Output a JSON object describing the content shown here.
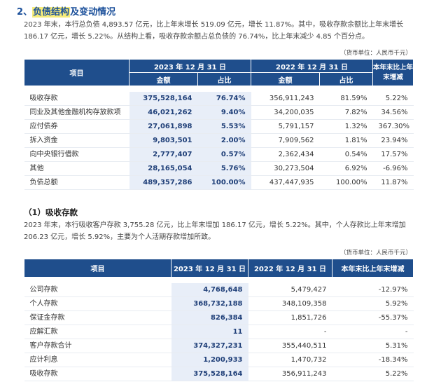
{
  "section": {
    "number": "2、",
    "title_highlight": "负债结构",
    "title_rest": "及变动情况",
    "para_lines": [
      "2023 年末，本行总负债 4,893.57 亿元，比上年末增长 519.09 亿元，增长 11.87%。其中，吸收存款余额比上年末增长",
      "186.17 亿元，增长 5.22%。从结构上看，吸收存款余额占总负债的 76.74%，比上年末减少 4.85 个百分点。"
    ],
    "unit": "（货币单位：人民币千元）"
  },
  "table1": {
    "headers": {
      "item": "项目",
      "date2023": "2023 年 12 月 31 日",
      "date2022": "2022 年 12 月 31 日",
      "change": "本年末比上年末增减",
      "amount": "金额",
      "ratio": "占比"
    },
    "rows": [
      {
        "item": "吸收存款",
        "a2023": "375,528,164",
        "r2023": "76.74%",
        "a2022": "356,911,243",
        "r2022": "81.59%",
        "chg": "5.22%"
      },
      {
        "item": "同业及其他金融机构存放款项",
        "a2023": "46,021,262",
        "r2023": "9.40%",
        "a2022": "34,200,035",
        "r2022": "7.82%",
        "chg": "34.56%"
      },
      {
        "item": "应付债券",
        "a2023": "27,061,898",
        "r2023": "5.53%",
        "a2022": "5,791,157",
        "r2022": "1.32%",
        "chg": "367.30%"
      },
      {
        "item": "拆入资金",
        "a2023": "9,803,501",
        "r2023": "2.00%",
        "a2022": "7,909,562",
        "r2022": "1.81%",
        "chg": "23.94%"
      },
      {
        "item": "向中央银行借款",
        "a2023": "2,777,407",
        "r2023": "0.57%",
        "a2022": "2,362,434",
        "r2022": "0.54%",
        "chg": "17.57%"
      },
      {
        "item": "其他",
        "a2023": "28,165,054",
        "r2023": "5.76%",
        "a2022": "30,273,504",
        "r2022": "6.92%",
        "chg": "-6.96%"
      },
      {
        "item": "负债总额",
        "a2023": "489,357,286",
        "r2023": "100.00%",
        "a2022": "437,447,935",
        "r2022": "100.00%",
        "chg": "11.87%"
      }
    ]
  },
  "subsection": {
    "title": "（1）吸收存款",
    "para_lines": [
      "2023 年末，本行吸收客户存款 3,755.28 亿元，比上年末增加 186.17 亿元，增长 5.22%。其中，个人存款比上年末增加",
      "206.23 亿元，增长 5.92%，主要为个人活期存款增加所致。"
    ],
    "unit": "（货币单位：人民币千元）"
  },
  "table2": {
    "headers": {
      "item": "项目",
      "date2023": "2023 年 12 月 31 日",
      "date2022": "2022 年 12 月 31 日",
      "change": "本年末比上年末增减"
    },
    "rows": [
      {
        "item": "公司存款",
        "a2023": "4,768,648",
        "a2022": "5,479,427",
        "chg": "-12.97%"
      },
      {
        "item": "个人存款",
        "a2023": "368,732,188",
        "a2022": "348,109,358",
        "chg": "5.92%"
      },
      {
        "item": "保证金存款",
        "a2023": "826,384",
        "a2022": "1,851,726",
        "chg": "-55.37%"
      },
      {
        "item": "应解汇款",
        "a2023": "11",
        "a2022": "-",
        "chg": "-"
      },
      {
        "item": "客户存款合计",
        "a2023": "374,327,231",
        "a2022": "355,440,511",
        "chg": "5.31%"
      },
      {
        "item": "应计利息",
        "a2023": "1,200,933",
        "a2022": "1,470,732",
        "chg": "-18.34%"
      },
      {
        "item": "吸收存款",
        "a2023": "375,528,164",
        "a2022": "356,911,243",
        "chg": "5.22%"
      }
    ]
  }
}
